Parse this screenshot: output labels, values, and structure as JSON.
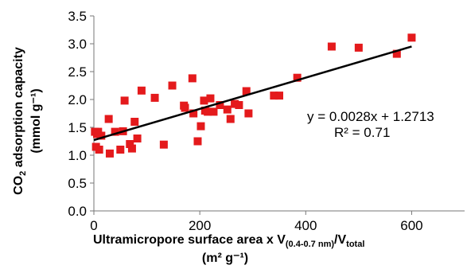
{
  "chart_data": {
    "type": "scatter",
    "title": "",
    "xlabel": {
      "main": "Ultramicropore surface area x V",
      "sub1": "(0.4-0.7 nm)",
      "mid": "/V",
      "sub2": "total",
      "units": "(m² g⁻¹)"
    },
    "ylabel": {
      "co": "CO",
      "sub": "2",
      "rest": " adsorption capacity",
      "units": "(mmol g⁻¹)"
    },
    "xlim": [
      0,
      700
    ],
    "ylim": [
      0,
      3.5
    ],
    "x_ticks": [
      0,
      200,
      400,
      600
    ],
    "y_ticks": [
      "0.0",
      "0.5",
      "1.0",
      "1.5",
      "2.0",
      "2.5",
      "3.0",
      "3.5"
    ],
    "marker_color": "#e41a1c",
    "trendline": {
      "slope": 0.0028,
      "intercept": 1.2713,
      "x_range": [
        0,
        600
      ],
      "equation": "y = 0.0028x + 1.2713",
      "r2": "R² = 0.71"
    },
    "points": [
      [
        2,
        1.42
      ],
      [
        4,
        1.15
      ],
      [
        6,
        1.38
      ],
      [
        8,
        1.42
      ],
      [
        10,
        1.1
      ],
      [
        14,
        1.35
      ],
      [
        28,
        1.65
      ],
      [
        30,
        1.03
      ],
      [
        40,
        1.42
      ],
      [
        50,
        1.1
      ],
      [
        55,
        1.43
      ],
      [
        58,
        1.98
      ],
      [
        68,
        1.2
      ],
      [
        72,
        1.12
      ],
      [
        77,
        1.6
      ],
      [
        82,
        1.3
      ],
      [
        90,
        2.16
      ],
      [
        115,
        2.03
      ],
      [
        132,
        1.19
      ],
      [
        148,
        2.25
      ],
      [
        170,
        1.89
      ],
      [
        172,
        1.85
      ],
      [
        186,
        2.38
      ],
      [
        188,
        1.75
      ],
      [
        196,
        1.25
      ],
      [
        202,
        1.52
      ],
      [
        208,
        1.98
      ],
      [
        210,
        1.8
      ],
      [
        215,
        1.78
      ],
      [
        220,
        2.02
      ],
      [
        226,
        1.78
      ],
      [
        238,
        1.9
      ],
      [
        252,
        1.82
      ],
      [
        258,
        1.65
      ],
      [
        266,
        1.92
      ],
      [
        274,
        1.9
      ],
      [
        288,
        2.15
      ],
      [
        292,
        1.75
      ],
      [
        340,
        2.07
      ],
      [
        350,
        2.07
      ],
      [
        384,
        2.39
      ],
      [
        449,
        2.95
      ],
      [
        500,
        2.93
      ],
      [
        572,
        2.82
      ],
      [
        600,
        3.11
      ]
    ]
  }
}
